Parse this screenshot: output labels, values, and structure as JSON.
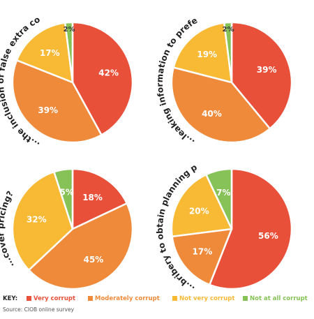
{
  "colors": {
    "very_corrupt": "#e8503a",
    "moderately_corrupt": "#ef8a3b",
    "not_very_corrupt": "#f8b935",
    "not_at_all_corrupt": "#86c257",
    "label_text": "#ffffff",
    "dark_label_text": "#333333"
  },
  "legend": {
    "key": "KEY:",
    "items": [
      {
        "label": "Very corrupt",
        "color": "#e8503a"
      },
      {
        "label": "Moderately corrupt",
        "color": "#ef8a3b"
      },
      {
        "label": "Not very corrupt",
        "color": "#f8b935"
      },
      {
        "label": "Not at all corrupt",
        "color": "#86c257"
      }
    ]
  },
  "source": "Source: CIOB online survey",
  "chart_data": [
    {
      "type": "pie",
      "title": "...the inclusion of false extra cost?",
      "categories": [
        "Very corrupt",
        "Moderately corrupt",
        "Not very corrupt",
        "Not at all corrupt"
      ],
      "values": [
        42,
        39,
        17,
        2
      ],
      "labels": [
        "42%",
        "39%",
        "17%",
        "2%"
      ]
    },
    {
      "type": "pie",
      "title": "...leaking information to preferred bidder?",
      "categories": [
        "Very corrupt",
        "Moderately corrupt",
        "Not very corrupt",
        "Not at all corrupt"
      ],
      "values": [
        39,
        40,
        19,
        2
      ],
      "labels": [
        "39%",
        "40%",
        "19%",
        "2%"
      ]
    },
    {
      "type": "pie",
      "title": "...cover pricing?",
      "categories": [
        "Very corrupt",
        "Moderately corrupt",
        "Not very corrupt",
        "Not at all corrupt"
      ],
      "values": [
        18,
        45,
        32,
        5
      ],
      "labels": [
        "18%",
        "45%",
        "32%",
        "5%"
      ]
    },
    {
      "type": "pie",
      "title": "...bribery to obtain planning permission?",
      "categories": [
        "Very corrupt",
        "Moderately corrupt",
        "Not very corrupt",
        "Not at all corrupt"
      ],
      "values": [
        56,
        17,
        20,
        7
      ],
      "labels": [
        "56%",
        "17%",
        "20%",
        "7%"
      ]
    }
  ]
}
